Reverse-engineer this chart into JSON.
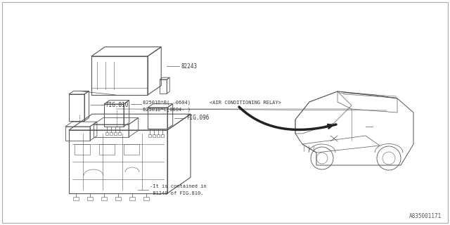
{
  "bg_color": "#ffffff",
  "line_color": "#555555",
  "text_color": "#333333",
  "font_size": 5.5,
  "diagram_id": "A835001171",
  "label_82243": "82243",
  "label_fig810": "FIG.810",
  "label_pn1": "82501D*B( -0604)",
  "label_pn2": "82501D*C(0604- )",
  "label_acr": "<AIR CONDITIONING RELAY>",
  "label_fig096": "FIG.096",
  "label_contained1": "-It is contained in",
  "label_contained2": " 81240 of FIG.810."
}
